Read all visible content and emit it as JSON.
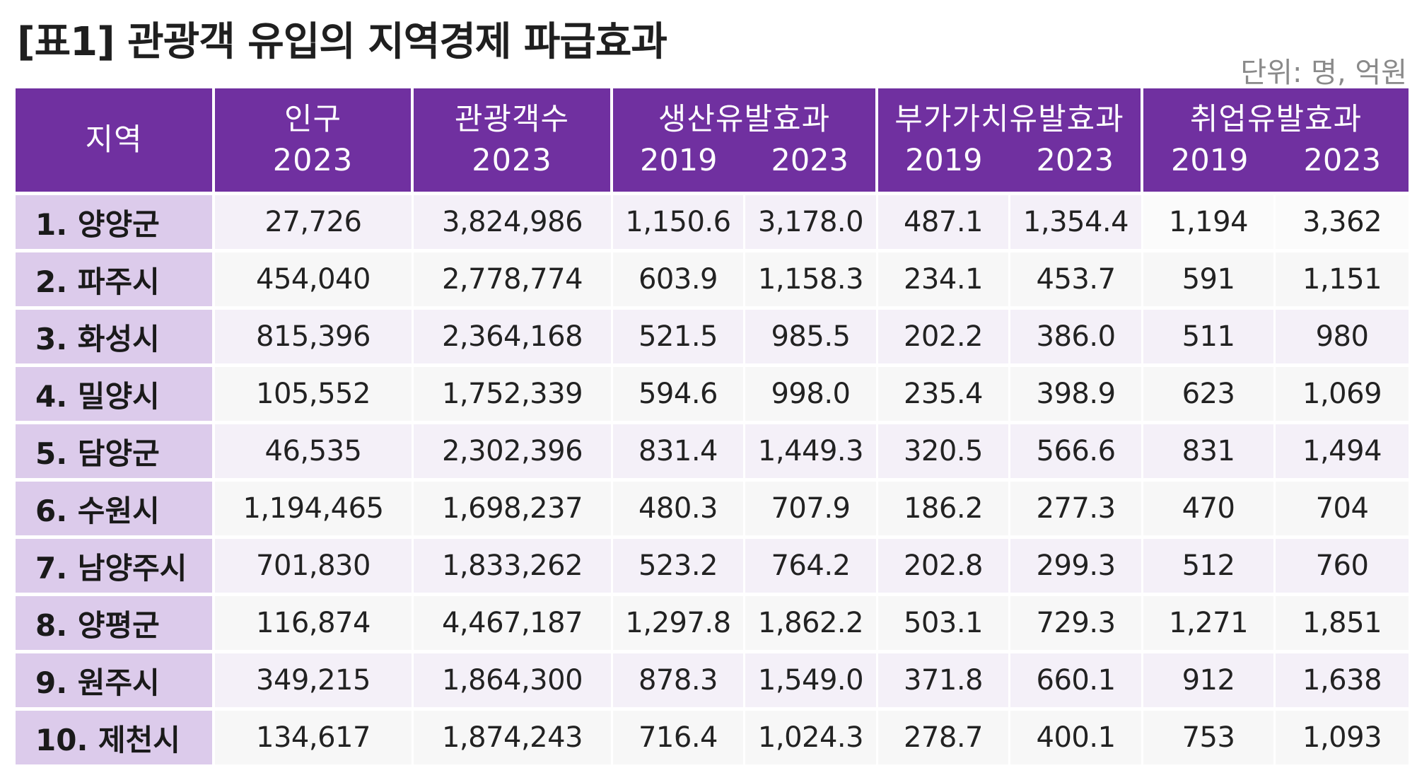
{
  "title": "[표1] 관광객 유입의 지역경제 파급효과",
  "unit": "단위: 명, 억원",
  "headers": {
    "region": "지역",
    "population": {
      "label": "인구",
      "year": "2023"
    },
    "tourists": {
      "label": "관광객수",
      "year": "2023"
    },
    "production": {
      "label": "생산유발효과",
      "y1": "2019",
      "y2": "2023"
    },
    "value_added": {
      "label": "부가가치유발효과",
      "y1": "2019",
      "y2": "2023"
    },
    "employment": {
      "label": "취업유발효과",
      "y1": "2019",
      "y2": "2023"
    }
  },
  "rows": [
    {
      "region": "1. 양양군",
      "cells": [
        "27,726",
        "3,824,986",
        "1,150.6",
        "3,178.0",
        "487.1",
        "1,354.4",
        "1,194",
        "3,362"
      ]
    },
    {
      "region": "2. 파주시",
      "cells": [
        "454,040",
        "2,778,774",
        "603.9",
        "1,158.3",
        "234.1",
        "453.7",
        "591",
        "1,151"
      ]
    },
    {
      "region": "3. 화성시",
      "cells": [
        "815,396",
        "2,364,168",
        "521.5",
        "985.5",
        "202.2",
        "386.0",
        "511",
        "980"
      ]
    },
    {
      "region": "4. 밀양시",
      "cells": [
        "105,552",
        "1,752,339",
        "594.6",
        "998.0",
        "235.4",
        "398.9",
        "623",
        "1,069"
      ]
    },
    {
      "region": "5. 담양군",
      "cells": [
        "46,535",
        "2,302,396",
        "831.4",
        "1,449.3",
        "320.5",
        "566.6",
        "831",
        "1,494"
      ]
    },
    {
      "region": "6. 수원시",
      "cells": [
        "1,194,465",
        "1,698,237",
        "480.3",
        "707.9",
        "186.2",
        "277.3",
        "470",
        "704"
      ]
    },
    {
      "region": "7. 남양주시",
      "cells": [
        "701,830",
        "1,833,262",
        "523.2",
        "764.2",
        "202.8",
        "299.3",
        "512",
        "760"
      ]
    },
    {
      "region": "8. 양평군",
      "cells": [
        "116,874",
        "4,467,187",
        "1,297.8",
        "1,862.2",
        "503.1",
        "729.3",
        "1,271",
        "1,851"
      ]
    },
    {
      "region": "9. 원주시",
      "cells": [
        "349,215",
        "1,864,300",
        "878.3",
        "1,549.0",
        "371.8",
        "660.1",
        "912",
        "1,638"
      ]
    },
    {
      "region": "10. 제천시",
      "cells": [
        "134,617",
        "1,874,243",
        "716.4",
        "1,024.3",
        "278.7",
        "400.1",
        "753",
        "1,093"
      ]
    }
  ],
  "colors": {
    "header_bg": "#7030a0",
    "region_bg": "#dccbeb",
    "row_odd_bg": "#f4f0f8",
    "row_even_bg": "#f7f7f7"
  }
}
